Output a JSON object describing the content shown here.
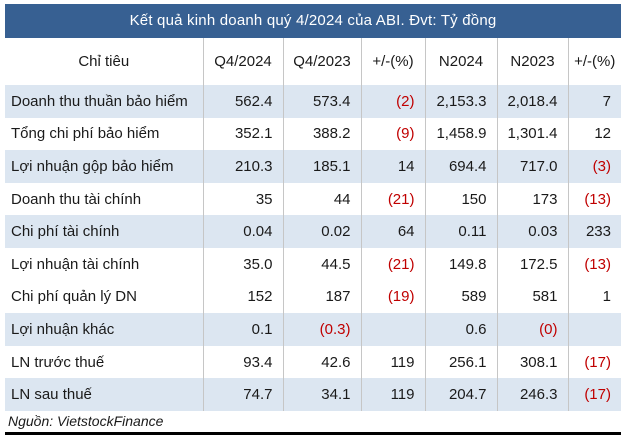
{
  "title": "Kết quả kinh doanh quý 4/2024 của ABI. Đvt: Tỷ đồng",
  "source": "Nguồn: VietstockFinance",
  "colors": {
    "title_bar_bg": "#376092",
    "title_bar_text": "#ffffff",
    "shaded_row_bg": "#dce6f1",
    "negative_value_text": "#c00000",
    "grid_line": "#c6c6c6",
    "bottom_rule": "#000000"
  },
  "chart_data": {
    "type": "table",
    "title": "Kết quả kinh doanh quý 4/2024 của ABI. Đvt: Tỷ đồng",
    "unit": "Tỷ đồng",
    "columns": [
      "Chỉ tiêu",
      "Q4/2024",
      "Q4/2023",
      "+/-(%)",
      "N2024",
      "N2023",
      "+/-(%)"
    ],
    "rows": [
      {
        "label": "Doanh thu thuần bảo hiểm",
        "values": [
          "562.4",
          "573.4",
          "(2)",
          "2,153.3",
          "2,018.4",
          "7"
        ],
        "shaded": true
      },
      {
        "label": "Tổng chi phí bảo hiểm",
        "values": [
          "352.1",
          "388.2",
          "(9)",
          "1,458.9",
          "1,301.4",
          "12"
        ],
        "shaded": false
      },
      {
        "label": "Lợi nhuận gộp  bảo hiểm",
        "values": [
          "210.3",
          "185.1",
          "14",
          "694.4",
          "717.0",
          "(3)"
        ],
        "shaded": true
      },
      {
        "label": "Doanh thu tài chính",
        "values": [
          "35",
          "44",
          "(21)",
          "150",
          "173",
          "(13)"
        ],
        "shaded": false
      },
      {
        "label": "Chi phí tài chính",
        "values": [
          "0.04",
          "0.02",
          "64",
          "0.11",
          "0.03",
          "233"
        ],
        "shaded": true
      },
      {
        "label": "Lợi nhuận tài chính",
        "values": [
          "35.0",
          "44.5",
          "(21)",
          "149.8",
          "172.5",
          "(13)"
        ],
        "shaded": false
      },
      {
        "label": "Chi phí quản lý DN",
        "values": [
          "152",
          "187",
          "(19)",
          "589",
          "581",
          "1"
        ],
        "shaded": false
      },
      {
        "label": "Lợi nhuận khác",
        "values": [
          "0.1",
          "(0.3)",
          "",
          "0.6",
          "(0)",
          ""
        ],
        "shaded": true
      },
      {
        "label": "LN trước thuế",
        "values": [
          "93.4",
          "42.6",
          "119",
          "256.1",
          "308.1",
          "(17)"
        ],
        "shaded": false
      },
      {
        "label": "LN sau thuế",
        "values": [
          "74.7",
          "34.1",
          "119",
          "204.7",
          "246.3",
          "(17)"
        ],
        "shaded": true
      }
    ],
    "negative_format": "values in parentheses are negative and rendered in red"
  }
}
